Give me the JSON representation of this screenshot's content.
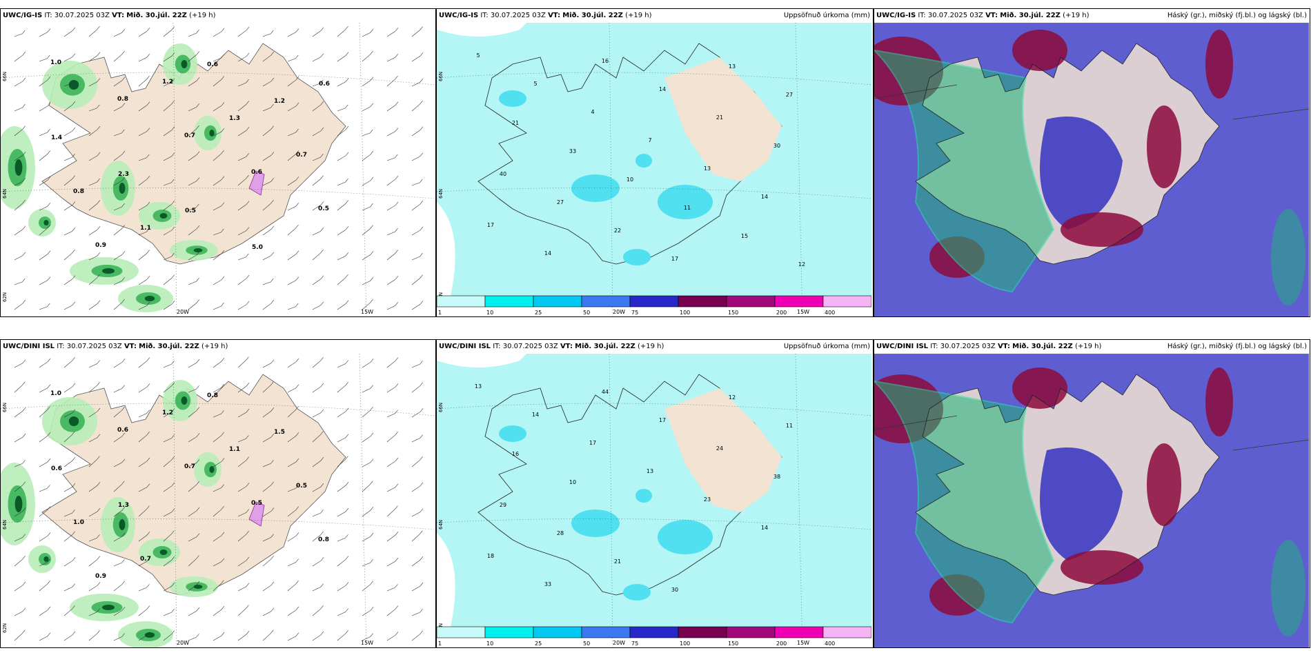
{
  "panels": [
    {
      "id": "p1",
      "model": "UWC/IG-IS",
      "it_prefix": "IT:",
      "it": "30.07.2025 03Z",
      "vt_prefix": "VT:",
      "vt": "Mið. 30.júl. 22Z",
      "lead": "(+19 h)",
      "right": ""
    },
    {
      "id": "p2",
      "model": "UWC/IG-IS",
      "it_prefix": "IT:",
      "it": "30.07.2025 03Z",
      "vt_prefix": "VT:",
      "vt": "Mið. 30.júl. 22Z",
      "lead": "(+19 h)",
      "right": "Uppsöfnuð úrkoma (mm)"
    },
    {
      "id": "p3",
      "model": "UWC/IG-IS",
      "it_prefix": "IT:",
      "it": "30.07.2025 03Z",
      "vt_prefix": "VT:",
      "vt": "Mið. 30.júl. 22Z",
      "lead": "(+19 h)",
      "right": "Háský (gr.), miðský (fj.bl.) og lágský (bl.)"
    },
    {
      "id": "p4",
      "model": "UWC/DINI ISL",
      "it_prefix": "IT:",
      "it": "30.07.2025 03Z",
      "vt_prefix": "VT:",
      "vt": "Mið. 30.júl. 22Z",
      "lead": "(+19 h)",
      "right": ""
    },
    {
      "id": "p5",
      "model": "UWC/DINI ISL",
      "it_prefix": "IT:",
      "it": "30.07.2025 03Z",
      "vt_prefix": "VT:",
      "vt": "Mið. 30.júl. 22Z",
      "lead": "(+19 h)",
      "right": "Uppsöfnuð úrkoma (mm)"
    },
    {
      "id": "p6",
      "model": "UWC/DINI ISL",
      "it_prefix": "IT:",
      "it": "30.07.2025 03Z",
      "vt_prefix": "VT:",
      "vt": "Mið. 30.júl. 22Z",
      "lead": "(+19 h)",
      "right": "Háský (gr.), miðský (fj.bl.) og lágský (bl.)"
    }
  ],
  "axes": {
    "lon_20": "20W",
    "lon_15": "15W",
    "lat_66": "66N",
    "lat_64": "64N",
    "lat_62": "62N"
  },
  "colorbar": {
    "ticks": [
      "1",
      "10",
      "25",
      "50",
      "75",
      "100",
      "150",
      "200",
      "400"
    ],
    "colors": [
      "#c8fafa",
      "#00f0f0",
      "#00c8f0",
      "#3c78f0",
      "#2828c8",
      "#780050",
      "#a0087c",
      "#f000b4",
      "#f5b4f5"
    ]
  },
  "colors": {
    "land": "#f2e3d3",
    "precip_light": "#b4f5f5",
    "precip_med": "#50e0f0",
    "wind_green_light": "#b8ecb8",
    "wind_green": "#3cb45a",
    "wind_green_dark": "#0a5a28",
    "low_cloud": "#2a28c0",
    "mid_cloud": "#8c0a3c",
    "high_cloud": "#1eb478"
  },
  "precip_values_top": [
    "5",
    "5",
    "4",
    "7",
    "13",
    "14",
    "17",
    "14",
    "16",
    "14",
    "21",
    "30",
    "40",
    "27",
    "22",
    "17",
    "13",
    "27",
    "21",
    "33",
    "10",
    "11",
    "15",
    "12"
  ],
  "precip_values_bottom": [
    "13",
    "14",
    "17",
    "13",
    "23",
    "14",
    "18",
    "33",
    "44",
    "17",
    "24",
    "38",
    "29",
    "28",
    "21",
    "30",
    "12",
    "11",
    "16",
    "10"
  ],
  "wind_values_top": [
    "1.0",
    "0.8",
    "0.7",
    "0.6",
    "0.5",
    "0.9",
    "1.2",
    "1.3",
    "0.7",
    "0.8",
    "1.1",
    "0.6",
    "1.2",
    "1.4",
    "2.3",
    "0.5",
    "5.0",
    "0.6"
  ],
  "wind_values_bottom": [
    "1.0",
    "0.6",
    "0.7",
    "0.5",
    "0.8",
    "0.9",
    "1.2",
    "1.1",
    "0.5",
    "1.0",
    "0.7",
    "0.8",
    "1.5",
    "0.6",
    "1.3"
  ]
}
